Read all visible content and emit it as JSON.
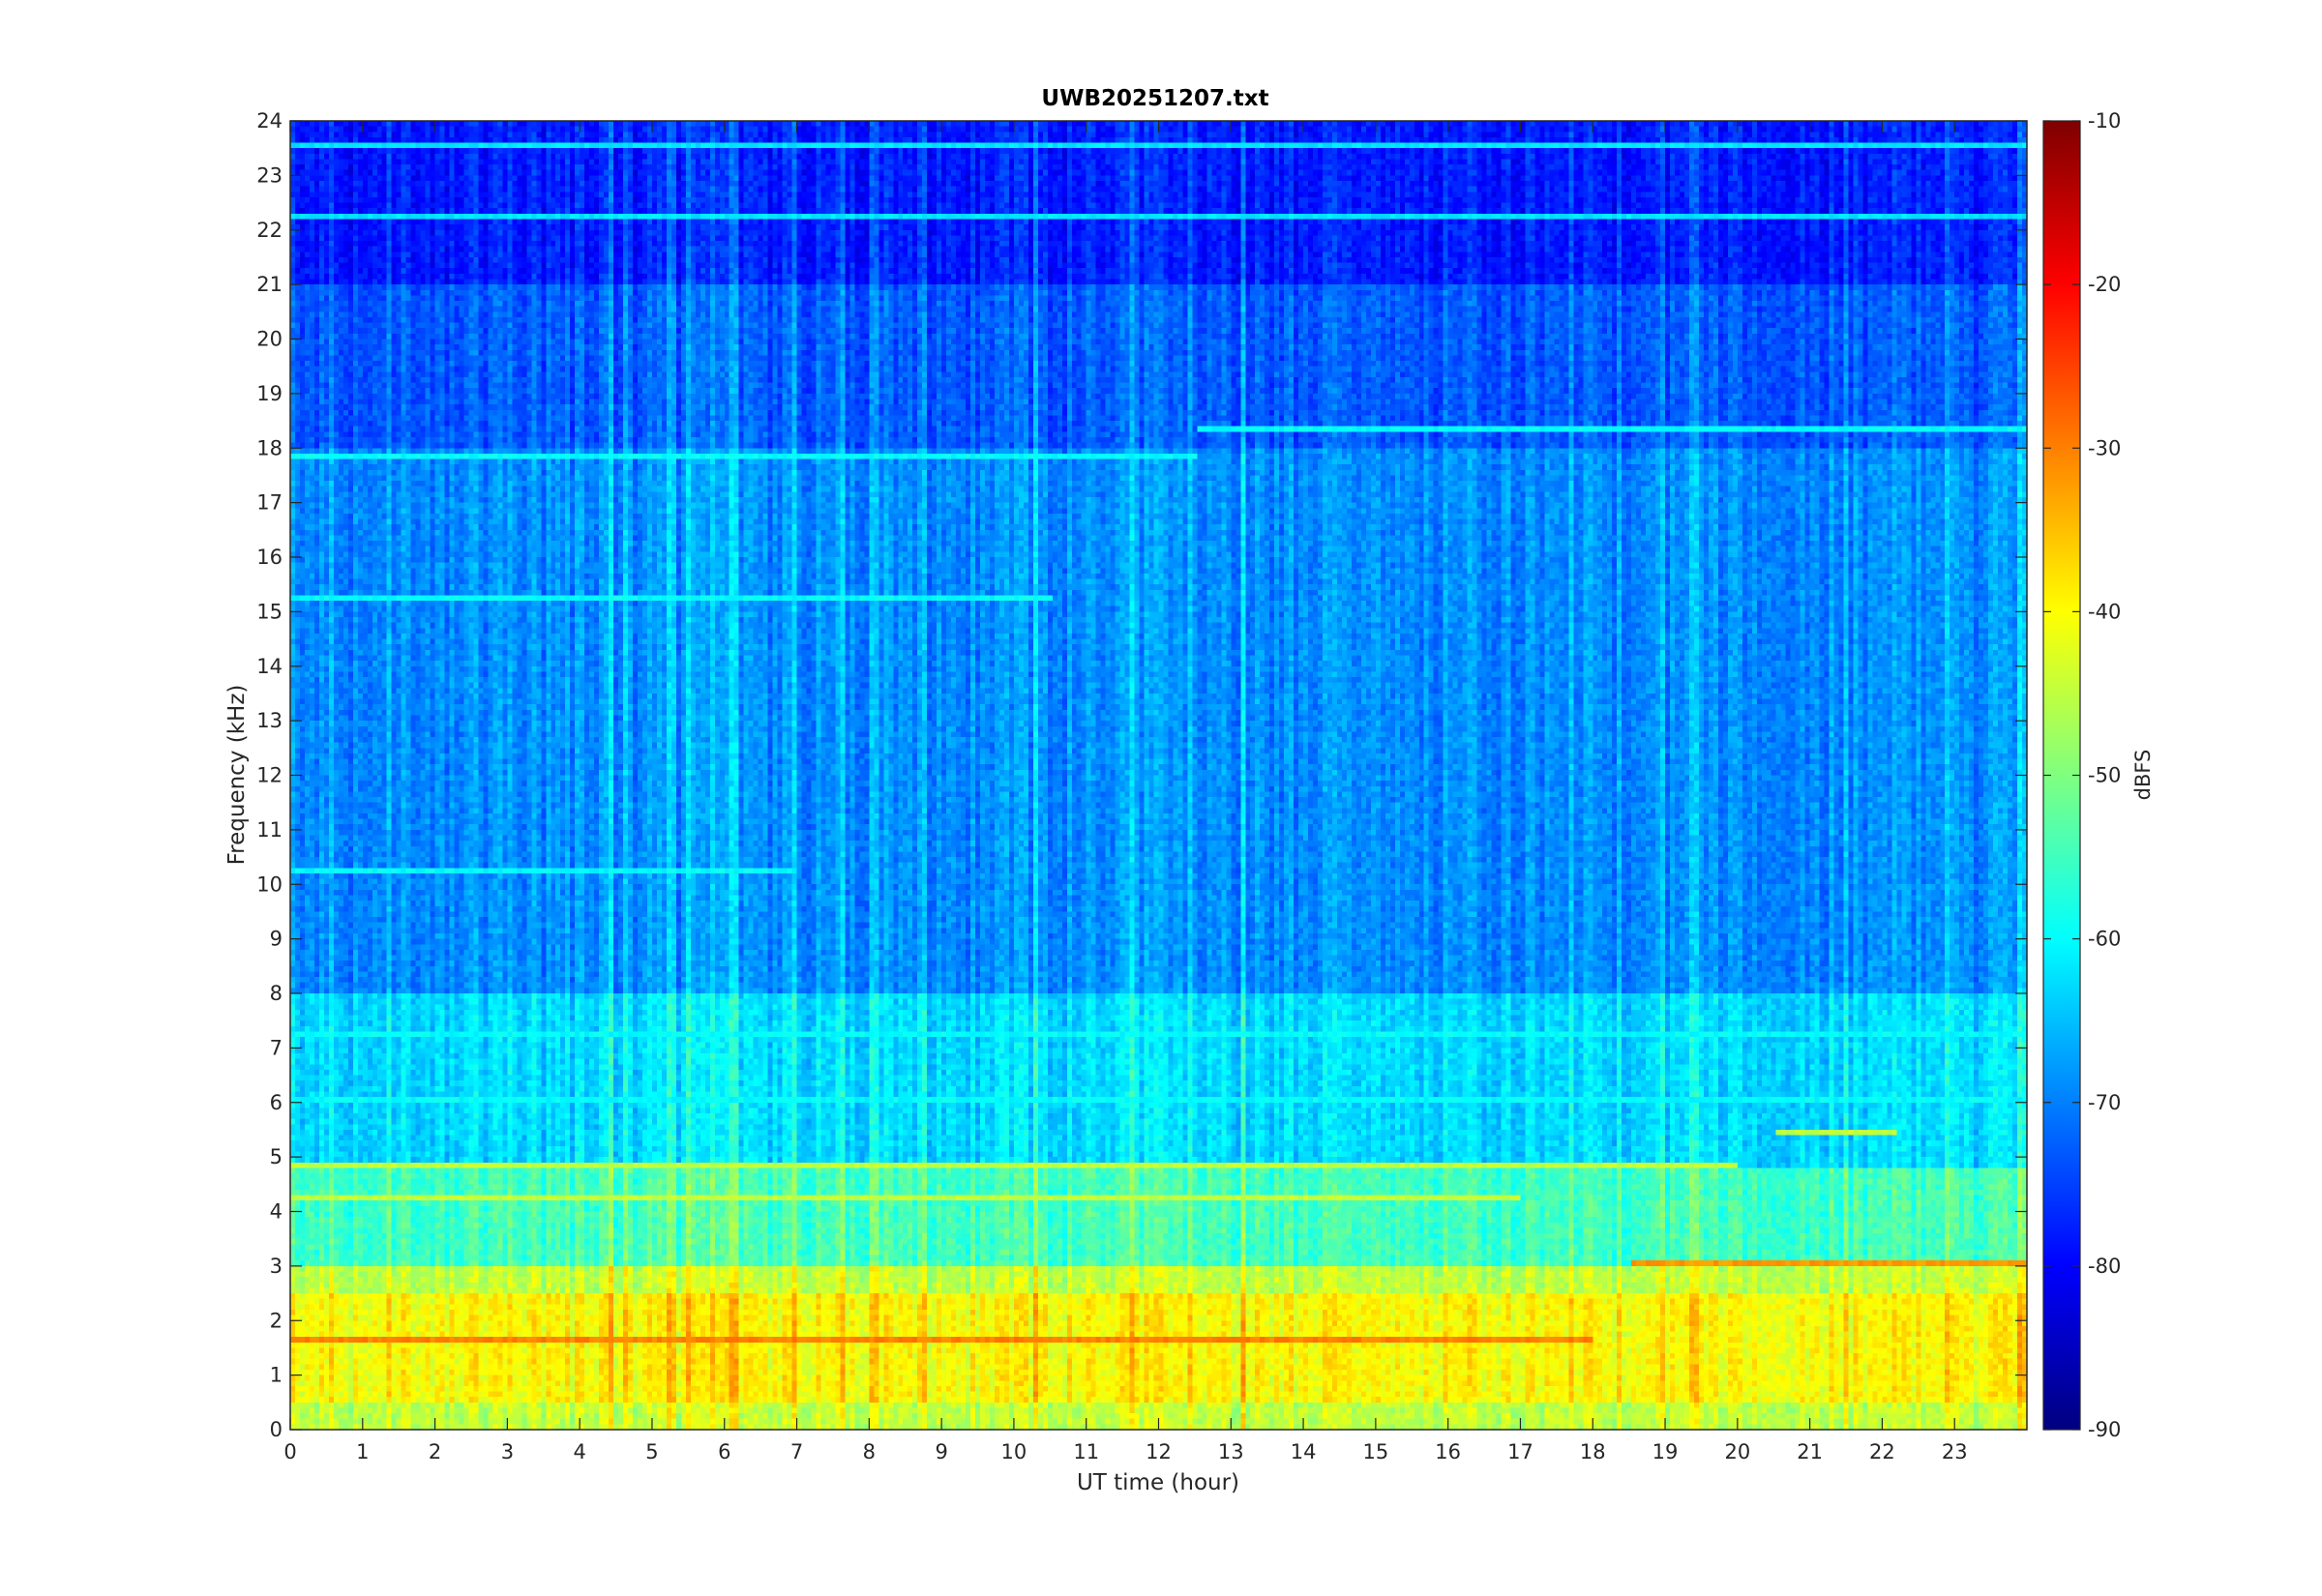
{
  "chart_data": {
    "type": "heatmap",
    "title": "UWB20251207.txt",
    "xlabel": "UT time (hour)",
    "ylabel": "Frequency (kHz)",
    "xlim": [
      0,
      24
    ],
    "ylim": [
      0,
      24
    ],
    "x_ticks": [
      0,
      1,
      2,
      3,
      4,
      5,
      6,
      7,
      8,
      9,
      10,
      11,
      12,
      13,
      14,
      15,
      16,
      17,
      18,
      19,
      20,
      21,
      22,
      23
    ],
    "y_ticks": [
      0,
      1,
      2,
      3,
      4,
      5,
      6,
      7,
      8,
      9,
      10,
      11,
      12,
      13,
      14,
      15,
      16,
      17,
      18,
      19,
      20,
      21,
      22,
      23,
      24
    ],
    "grid": false,
    "colormap": "jet",
    "colorbar": {
      "label": "dBFS",
      "range": [
        -90,
        -10
      ],
      "ticks": [
        -10,
        -20,
        -30,
        -40,
        -50,
        -60,
        -70,
        -80,
        -90
      ],
      "placement": "right"
    },
    "levels_dbfs_by_frequency_band": [
      {
        "freq_khz": [
          0,
          0.5
        ],
        "level_dbfs": -45
      },
      {
        "freq_khz": [
          0.5,
          2.5
        ],
        "level_dbfs": -40
      },
      {
        "freq_khz": [
          2.5,
          3.0
        ],
        "level_dbfs": -45
      },
      {
        "freq_khz": [
          3.0,
          4.8
        ],
        "level_dbfs": -55
      },
      {
        "freq_khz": [
          4.8,
          8.0
        ],
        "level_dbfs": -63
      },
      {
        "freq_khz": [
          8.0,
          18.0
        ],
        "level_dbfs": -69
      },
      {
        "freq_khz": [
          18.0,
          21.0
        ],
        "level_dbfs": -73
      },
      {
        "freq_khz": [
          21.0,
          24.0
        ],
        "level_dbfs": -78
      }
    ],
    "narrowband_lines": [
      {
        "freq_khz": 1.6,
        "hours": [
          0,
          18
        ],
        "level_dbfs": -30
      },
      {
        "freq_khz": 3.0,
        "hours": [
          18.5,
          24
        ],
        "level_dbfs": -32
      },
      {
        "freq_khz": 4.8,
        "hours": [
          0,
          20
        ],
        "level_dbfs": -45
      },
      {
        "freq_khz": 4.2,
        "hours": [
          0,
          17
        ],
        "level_dbfs": -45
      },
      {
        "freq_khz": 5.4,
        "hours": [
          20.5,
          22.2
        ],
        "level_dbfs": -45
      },
      {
        "freq_khz": 6.0,
        "hours": [
          0,
          24
        ],
        "level_dbfs": -60
      },
      {
        "freq_khz": 7.2,
        "hours": [
          0,
          24
        ],
        "level_dbfs": -60
      },
      {
        "freq_khz": 10.2,
        "hours": [
          0,
          7
        ],
        "level_dbfs": -60
      },
      {
        "freq_khz": 15.2,
        "hours": [
          0,
          10.5
        ],
        "level_dbfs": -60
      },
      {
        "freq_khz": 17.8,
        "hours": [
          0,
          12.5
        ],
        "level_dbfs": -60
      },
      {
        "freq_khz": 18.3,
        "hours": [
          12.5,
          24
        ],
        "level_dbfs": -60
      },
      {
        "freq_khz": 22.2,
        "hours": [
          0,
          24
        ],
        "level_dbfs": -62
      },
      {
        "freq_khz": 23.5,
        "hours": [
          0,
          24
        ],
        "level_dbfs": -62
      }
    ]
  }
}
